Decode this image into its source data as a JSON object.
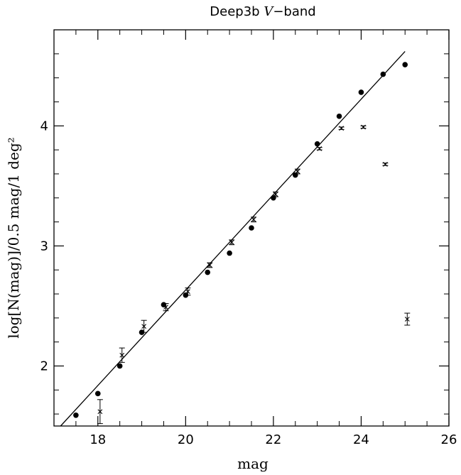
{
  "chart_data": {
    "type": "scatter",
    "title": "Deep3b V−band",
    "title_parts": {
      "prefix": "Deep3b ",
      "italic": "V",
      "suffix": "−band"
    },
    "xlabel": "mag",
    "ylabel": "log[N(mag)]/0.5 mag/1 deg²",
    "xlim": [
      17.0,
      26.0
    ],
    "ylim": [
      1.5,
      4.8
    ],
    "xticks": [
      18,
      20,
      22,
      24,
      26
    ],
    "yticks": [
      2,
      3,
      4
    ],
    "x_minor_step": 0.5,
    "y_minor_step": 0.2,
    "grid": false,
    "series": [
      {
        "marker": "filled-circle",
        "x": [
          17.5,
          18.0,
          18.5,
          19.0,
          19.5,
          20.0,
          20.5,
          21.0,
          21.5,
          22.0,
          22.5,
          23.0,
          23.5,
          24.0,
          24.5,
          25.0
        ],
        "y": [
          1.59,
          1.77,
          2.0,
          2.28,
          2.51,
          2.59,
          2.78,
          2.94,
          3.15,
          3.4,
          3.59,
          3.85,
          4.08,
          4.28,
          4.43,
          4.51
        ]
      },
      {
        "marker": "cross-with-errorbars",
        "x": [
          18.05,
          18.55,
          19.05,
          19.55,
          20.05,
          20.55,
          21.05,
          21.55,
          22.05,
          22.55,
          23.05,
          23.55,
          24.05,
          24.55,
          25.05
        ],
        "y": [
          1.62,
          2.09,
          2.33,
          2.49,
          2.62,
          2.84,
          3.03,
          3.22,
          3.43,
          3.62,
          3.81,
          3.98,
          3.99,
          3.68,
          2.39
        ],
        "err": [
          0.1,
          0.06,
          0.05,
          0.03,
          0.03,
          0.02,
          0.02,
          0.02,
          0.02,
          0.02,
          0.01,
          0.01,
          0.01,
          0.01,
          0.05
        ]
      }
    ],
    "fit_line": {
      "x": [
        17.0,
        25.0
      ],
      "y": [
        1.44,
        4.62
      ]
    }
  }
}
